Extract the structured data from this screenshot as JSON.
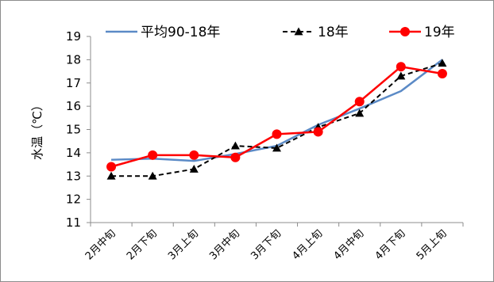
{
  "chart_data": {
    "type": "line",
    "title": "",
    "xlabel": "",
    "ylabel": "水温（℃）",
    "ylim": [
      11,
      19
    ],
    "yticks": [
      11,
      12,
      13,
      14,
      15,
      16,
      17,
      18,
      19
    ],
    "grid": false,
    "legend_position": "top",
    "categories": [
      "2月中旬",
      "2月下旬",
      "3月上旬",
      "3月中旬",
      "3月下旬",
      "4月上旬",
      "4月中旬",
      "4月下旬",
      "5月上旬"
    ],
    "series": [
      {
        "name": "平均90-18年",
        "values": [
          13.7,
          13.75,
          13.65,
          13.95,
          14.3,
          15.2,
          15.9,
          16.65,
          18.0
        ],
        "color": "#5b8ac6",
        "line_style": "solid",
        "marker": "none"
      },
      {
        "name": "18年",
        "values": [
          13.0,
          13.0,
          13.3,
          14.3,
          14.2,
          15.1,
          15.7,
          17.3,
          17.85
        ],
        "color": "#000000",
        "line_style": "dashed",
        "marker": "triangle"
      },
      {
        "name": "19年",
        "values": [
          13.4,
          13.9,
          13.9,
          13.8,
          14.8,
          14.9,
          16.2,
          17.7,
          17.4
        ],
        "color": "#ff0000",
        "line_style": "solid",
        "marker": "circle"
      }
    ]
  }
}
